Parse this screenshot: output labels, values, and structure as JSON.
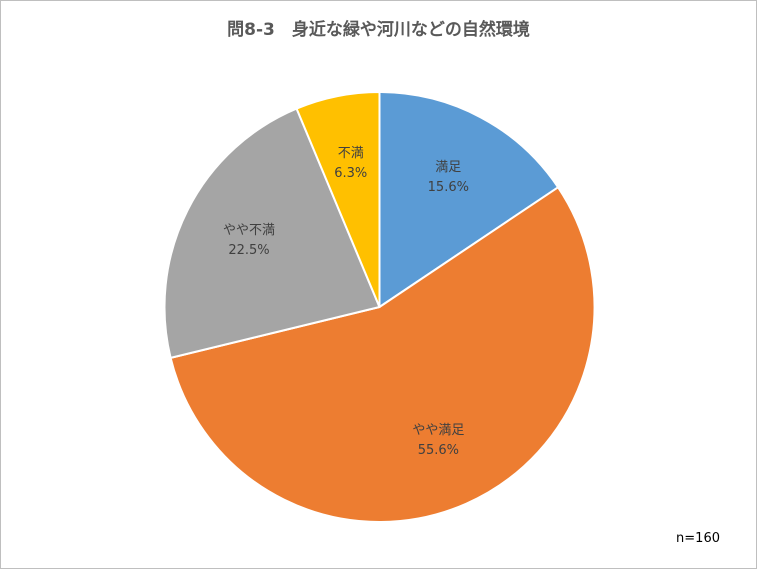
{
  "chart_data": {
    "type": "pie",
    "title": "問8-3　身近な緑や河川などの自然環境",
    "note": "n=160",
    "start_angle_deg": 0,
    "direction": "clockwise",
    "slices": [
      {
        "label": "満足",
        "value": 15.6,
        "value_label": "15.6%",
        "color": "#5b9bd5"
      },
      {
        "label": "やや満足",
        "value": 55.6,
        "value_label": "55.6%",
        "color": "#ed7d31"
      },
      {
        "label": "やや不満",
        "value": 22.5,
        "value_label": "22.5%",
        "color": "#a5a5a5"
      },
      {
        "label": "不満",
        "value": 6.3,
        "value_label": "6.3%",
        "color": "#ffc000"
      }
    ]
  }
}
